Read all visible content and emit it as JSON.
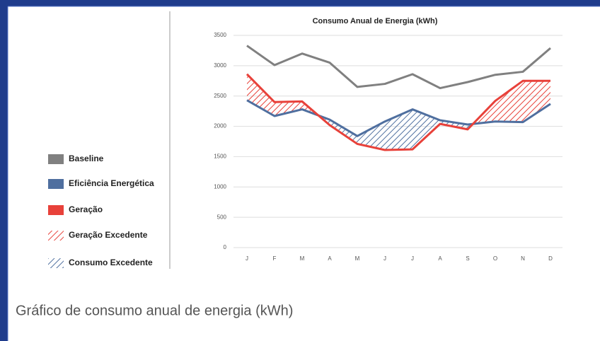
{
  "chart_data": {
    "type": "line",
    "title": "Consumo Anual de Energia (kWh)",
    "caption": "Gráfico de consumo anual de energia (kWh)",
    "categories": [
      "J",
      "F",
      "M",
      "A",
      "M",
      "J",
      "J",
      "A",
      "S",
      "O",
      "N",
      "D"
    ],
    "series": [
      {
        "name": "Baseline",
        "color": "#808080",
        "values": [
          3330,
          3010,
          3200,
          3050,
          2650,
          2700,
          2860,
          2630,
          2730,
          2850,
          2900,
          3290
        ]
      },
      {
        "name": "Eficiência Energética",
        "color": "#4f6f9f",
        "values": [
          2430,
          2170,
          2280,
          2110,
          1840,
          2080,
          2280,
          2100,
          2030,
          2080,
          2070,
          2370
        ]
      },
      {
        "name": "Geração",
        "color": "#e8413a",
        "values": [
          2860,
          2400,
          2410,
          2020,
          1710,
          1610,
          1620,
          2040,
          1950,
          2420,
          2750,
          2750
        ]
      }
    ],
    "areas": [
      {
        "name": "Geração Excedente",
        "color": "#e8413a"
      },
      {
        "name": "Consumo Excedente",
        "color": "#4f6f9f"
      }
    ],
    "ylim": [
      0,
      3500
    ],
    "yticks": [
      0,
      500,
      1000,
      1500,
      2000,
      2500,
      3000,
      3500
    ],
    "grid": true
  }
}
